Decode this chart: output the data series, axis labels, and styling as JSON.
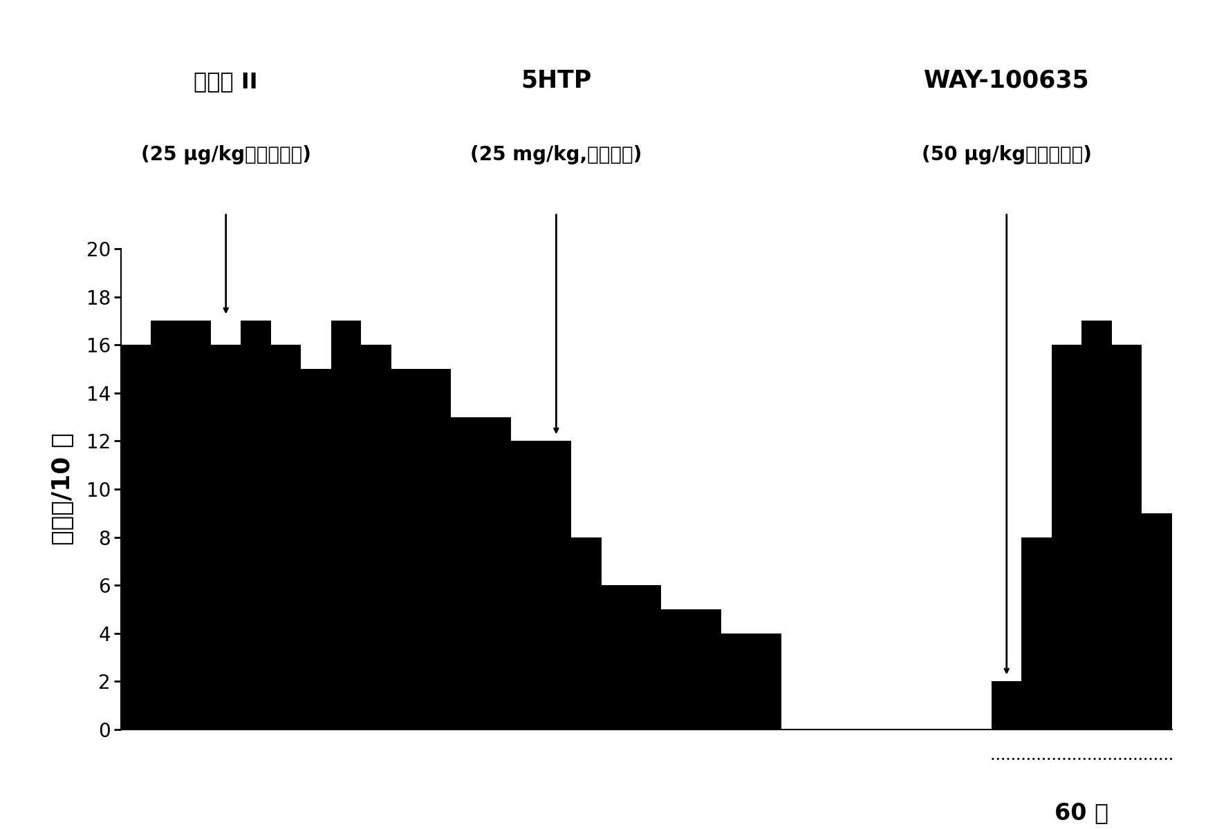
{
  "bar_values": [
    16,
    17,
    17,
    16,
    17,
    16,
    15,
    17,
    16,
    15,
    15,
    13,
    13,
    12,
    12,
    8,
    6,
    6,
    5,
    5,
    4,
    4,
    0,
    0,
    0,
    0,
    0,
    0,
    0,
    2,
    8,
    16,
    17,
    16,
    9
  ],
  "bar_width": 1,
  "ylim": [
    0,
    20
  ],
  "yticks": [
    0,
    2,
    4,
    6,
    8,
    10,
    12,
    14,
    16,
    18,
    20
  ],
  "bar_color": "#000000",
  "background_color": "#ffffff",
  "ylabel": "发放峰/10 秒",
  "xlabel_bottom": "60 秒",
  "arrow1_bar_idx": 3,
  "arrow2_bar_idx": 14,
  "arrow3_bar_idx": 29,
  "label1_line1": "化合物 II",
  "label1_line2": "(25 μg/kg，静脉注射)",
  "label2_line1": "5HTP",
  "label2_line2": "(25 mg/kg,静脉注射)",
  "label3_line1": "WAY-100635",
  "label3_line2": "(50 μg/kg，静脉注射)",
  "scale_bar_x1": 29,
  "scale_bar_x2": 35,
  "n_bars": 35,
  "xlim_left": 0,
  "xlim_right": 35
}
